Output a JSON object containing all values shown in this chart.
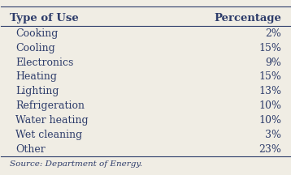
{
  "col1_header": "Type of Use",
  "col2_header": "Percentage",
  "rows": [
    [
      "Cooking",
      "2%"
    ],
    [
      "Cooling",
      "15%"
    ],
    [
      "Electronics",
      "9%"
    ],
    [
      "Heating",
      "15%"
    ],
    [
      "Lighting",
      "13%"
    ],
    [
      "Refrigeration",
      "10%"
    ],
    [
      "Water heating",
      "10%"
    ],
    [
      "Wet cleaning",
      "3%"
    ],
    [
      "Other",
      "23%"
    ]
  ],
  "source": "Source: Department of Energy.",
  "background_color": "#f0ede4",
  "text_color": "#2e3d6b",
  "header_color": "#2e3d6b",
  "line_color": "#2e3d6b",
  "font_size": 9.0,
  "header_font_size": 9.5,
  "source_font_size": 7.5
}
